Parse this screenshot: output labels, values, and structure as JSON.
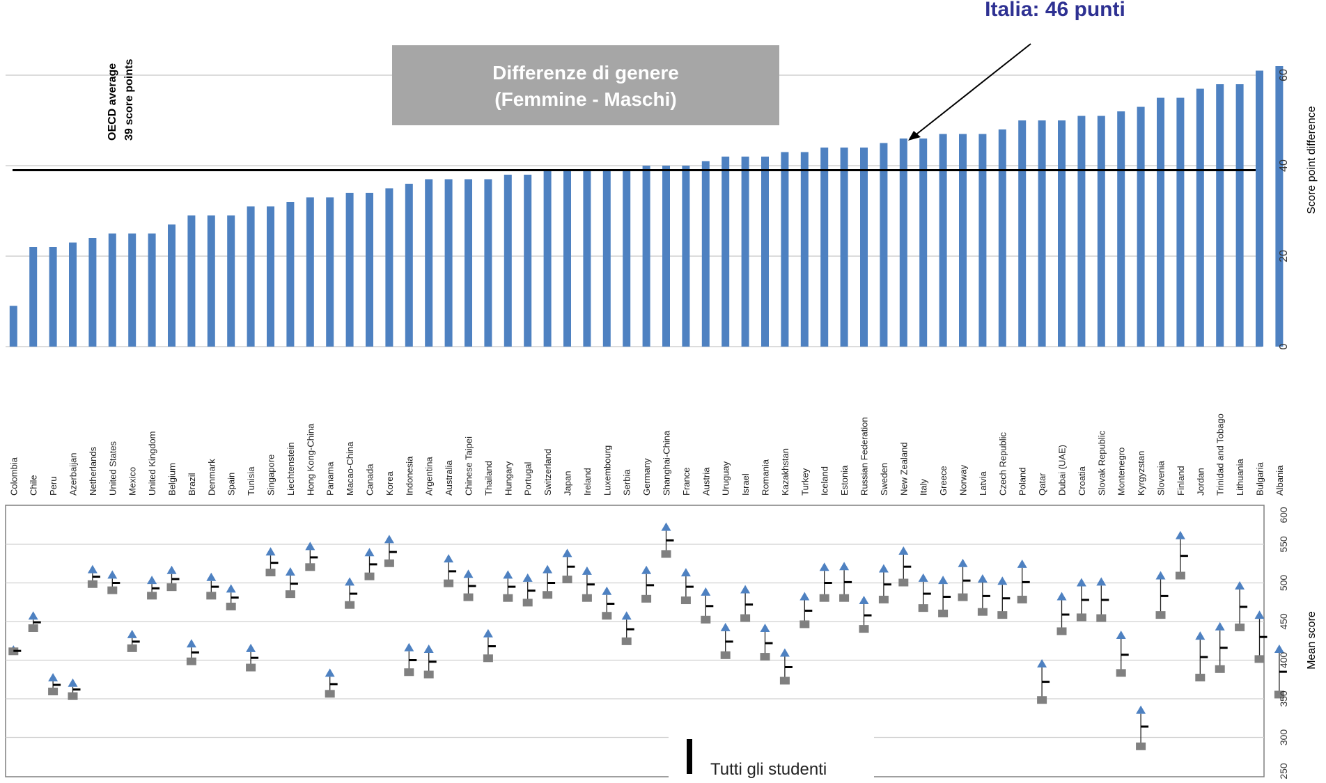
{
  "chart_data": [
    {
      "type": "bar",
      "title": "Differenze di genere",
      "subtitle": "(Femmine - Maschi)",
      "ylabel": "Score point difference",
      "ylim": [
        0,
        75
      ],
      "yticks": [
        "0",
        "20",
        "40",
        "60"
      ],
      "grid": true,
      "oecd_average": {
        "value": 39,
        "label_line1": "OECD average",
        "label_line2": "39 score points"
      },
      "annotation": {
        "text": "Italia: 46 punti",
        "target_category": "Italy",
        "color": "#2e3192"
      },
      "bar_color": "#4e81c1",
      "categories": [
        "Colombia",
        "Chile",
        "Peru",
        "Azerbaijan",
        "Netherlands",
        "United States",
        "Mexico",
        "United Kingdom",
        "Belgium",
        "Brazil",
        "Denmark",
        "Spain",
        "Tunisia",
        "Singapore",
        "Liechtenstein",
        "Hong Kong-China",
        "Panama",
        "Macao-China",
        "Canada",
        "Korea",
        "Indonesia",
        "Argentina",
        "Australia",
        "Chinese Taipei",
        "Thailand",
        "Hungary",
        "Portugal",
        "Switzerland",
        "Japan",
        "Ireland",
        "Luxembourg",
        "Serbia",
        "Germany",
        "Shanghai-China",
        "France",
        "Austria",
        "Uruguay",
        "Israel",
        "Romania",
        "Kazakhstan",
        "Turkey",
        "Iceland",
        "Estonia",
        "Russian Federation",
        "Sweden",
        "New Zealand",
        "Italy",
        "Greece",
        "Norway",
        "Latvia",
        "Czech Republic",
        "Poland",
        "Qatar",
        "Dubai (UAE)",
        "Croatia",
        "Slovak Republic",
        "Montenegro",
        "Kyrgyzstan",
        "Slovenia",
        "Finland",
        "Jordan",
        "Trinidad and Tobago",
        "Lithuania",
        "Bulgaria",
        "Albania"
      ],
      "values": [
        9,
        22,
        22,
        23,
        24,
        25,
        25,
        25,
        27,
        29,
        29,
        29,
        31,
        31,
        32,
        33,
        33,
        34,
        34,
        35,
        36,
        37,
        37,
        37,
        37,
        38,
        38,
        39,
        39,
        39,
        39,
        39,
        40,
        40,
        40,
        41,
        42,
        42,
        42,
        43,
        43,
        44,
        44,
        44,
        45,
        46,
        46,
        47,
        47,
        47,
        48,
        50,
        50,
        50,
        51,
        51,
        52,
        53,
        55,
        55,
        57,
        58,
        58,
        61,
        62
      ]
    },
    {
      "type": "scatter",
      "ylabel": "Mean score",
      "ylim": [
        250,
        600
      ],
      "yticks": [
        "250",
        "300",
        "350",
        "400",
        "450",
        "500",
        "550",
        "600"
      ],
      "grid": true,
      "legend": {
        "label": "Tutti gli studenti",
        "placement": "bottom-center"
      },
      "series": [
        {
          "name": "",
          "marker": "triangle",
          "color": "#4e81c1",
          "values": [
            413,
            457,
            377,
            370,
            517,
            510,
            433,
            503,
            516,
            421,
            507,
            492,
            415,
            540,
            514,
            547,
            383,
            501,
            539,
            556,
            416,
            414,
            531,
            511,
            434,
            510,
            506,
            517,
            538,
            515,
            489,
            457,
            516,
            572,
            513,
            488,
            442,
            491,
            441,
            409,
            482,
            520,
            521,
            477,
            518,
            541,
            506,
            503,
            525,
            505,
            502,
            524,
            395,
            482,
            500,
            501,
            432,
            335,
            509,
            561,
            431,
            443,
            496,
            458,
            414
          ]
        },
        {
          "name": "",
          "marker": "square",
          "color": "#808080",
          "values": [
            411,
            441,
            359,
            353,
            498,
            490,
            415,
            483,
            494,
            398,
            483,
            469,
            390,
            513,
            485,
            520,
            356,
            471,
            508,
            525,
            384,
            381,
            499,
            481,
            402,
            480,
            474,
            484,
            504,
            480,
            457,
            424,
            479,
            537,
            477,
            452,
            406,
            454,
            404,
            373,
            446,
            480,
            480,
            440,
            478,
            500,
            467,
            460,
            481,
            462,
            458,
            478,
            348,
            437,
            455,
            454,
            383,
            288,
            458,
            509,
            377,
            388,
            442,
            401,
            355
          ]
        },
        {
          "name": "",
          "marker": "dash",
          "color": "#000000",
          "values": [
            412,
            449,
            368,
            362,
            508,
            500,
            424,
            493,
            505,
            410,
            495,
            481,
            403,
            526,
            499,
            533,
            369,
            486,
            524,
            540,
            400,
            398,
            515,
            496,
            418,
            495,
            490,
            500,
            521,
            498,
            473,
            440,
            497,
            555,
            495,
            470,
            424,
            472,
            422,
            391,
            464,
            500,
            501,
            458,
            498,
            521,
            486,
            482,
            503,
            483,
            480,
            501,
            372,
            459,
            478,
            478,
            407,
            314,
            483,
            535,
            404,
            416,
            469,
            430,
            385
          ]
        }
      ]
    }
  ]
}
